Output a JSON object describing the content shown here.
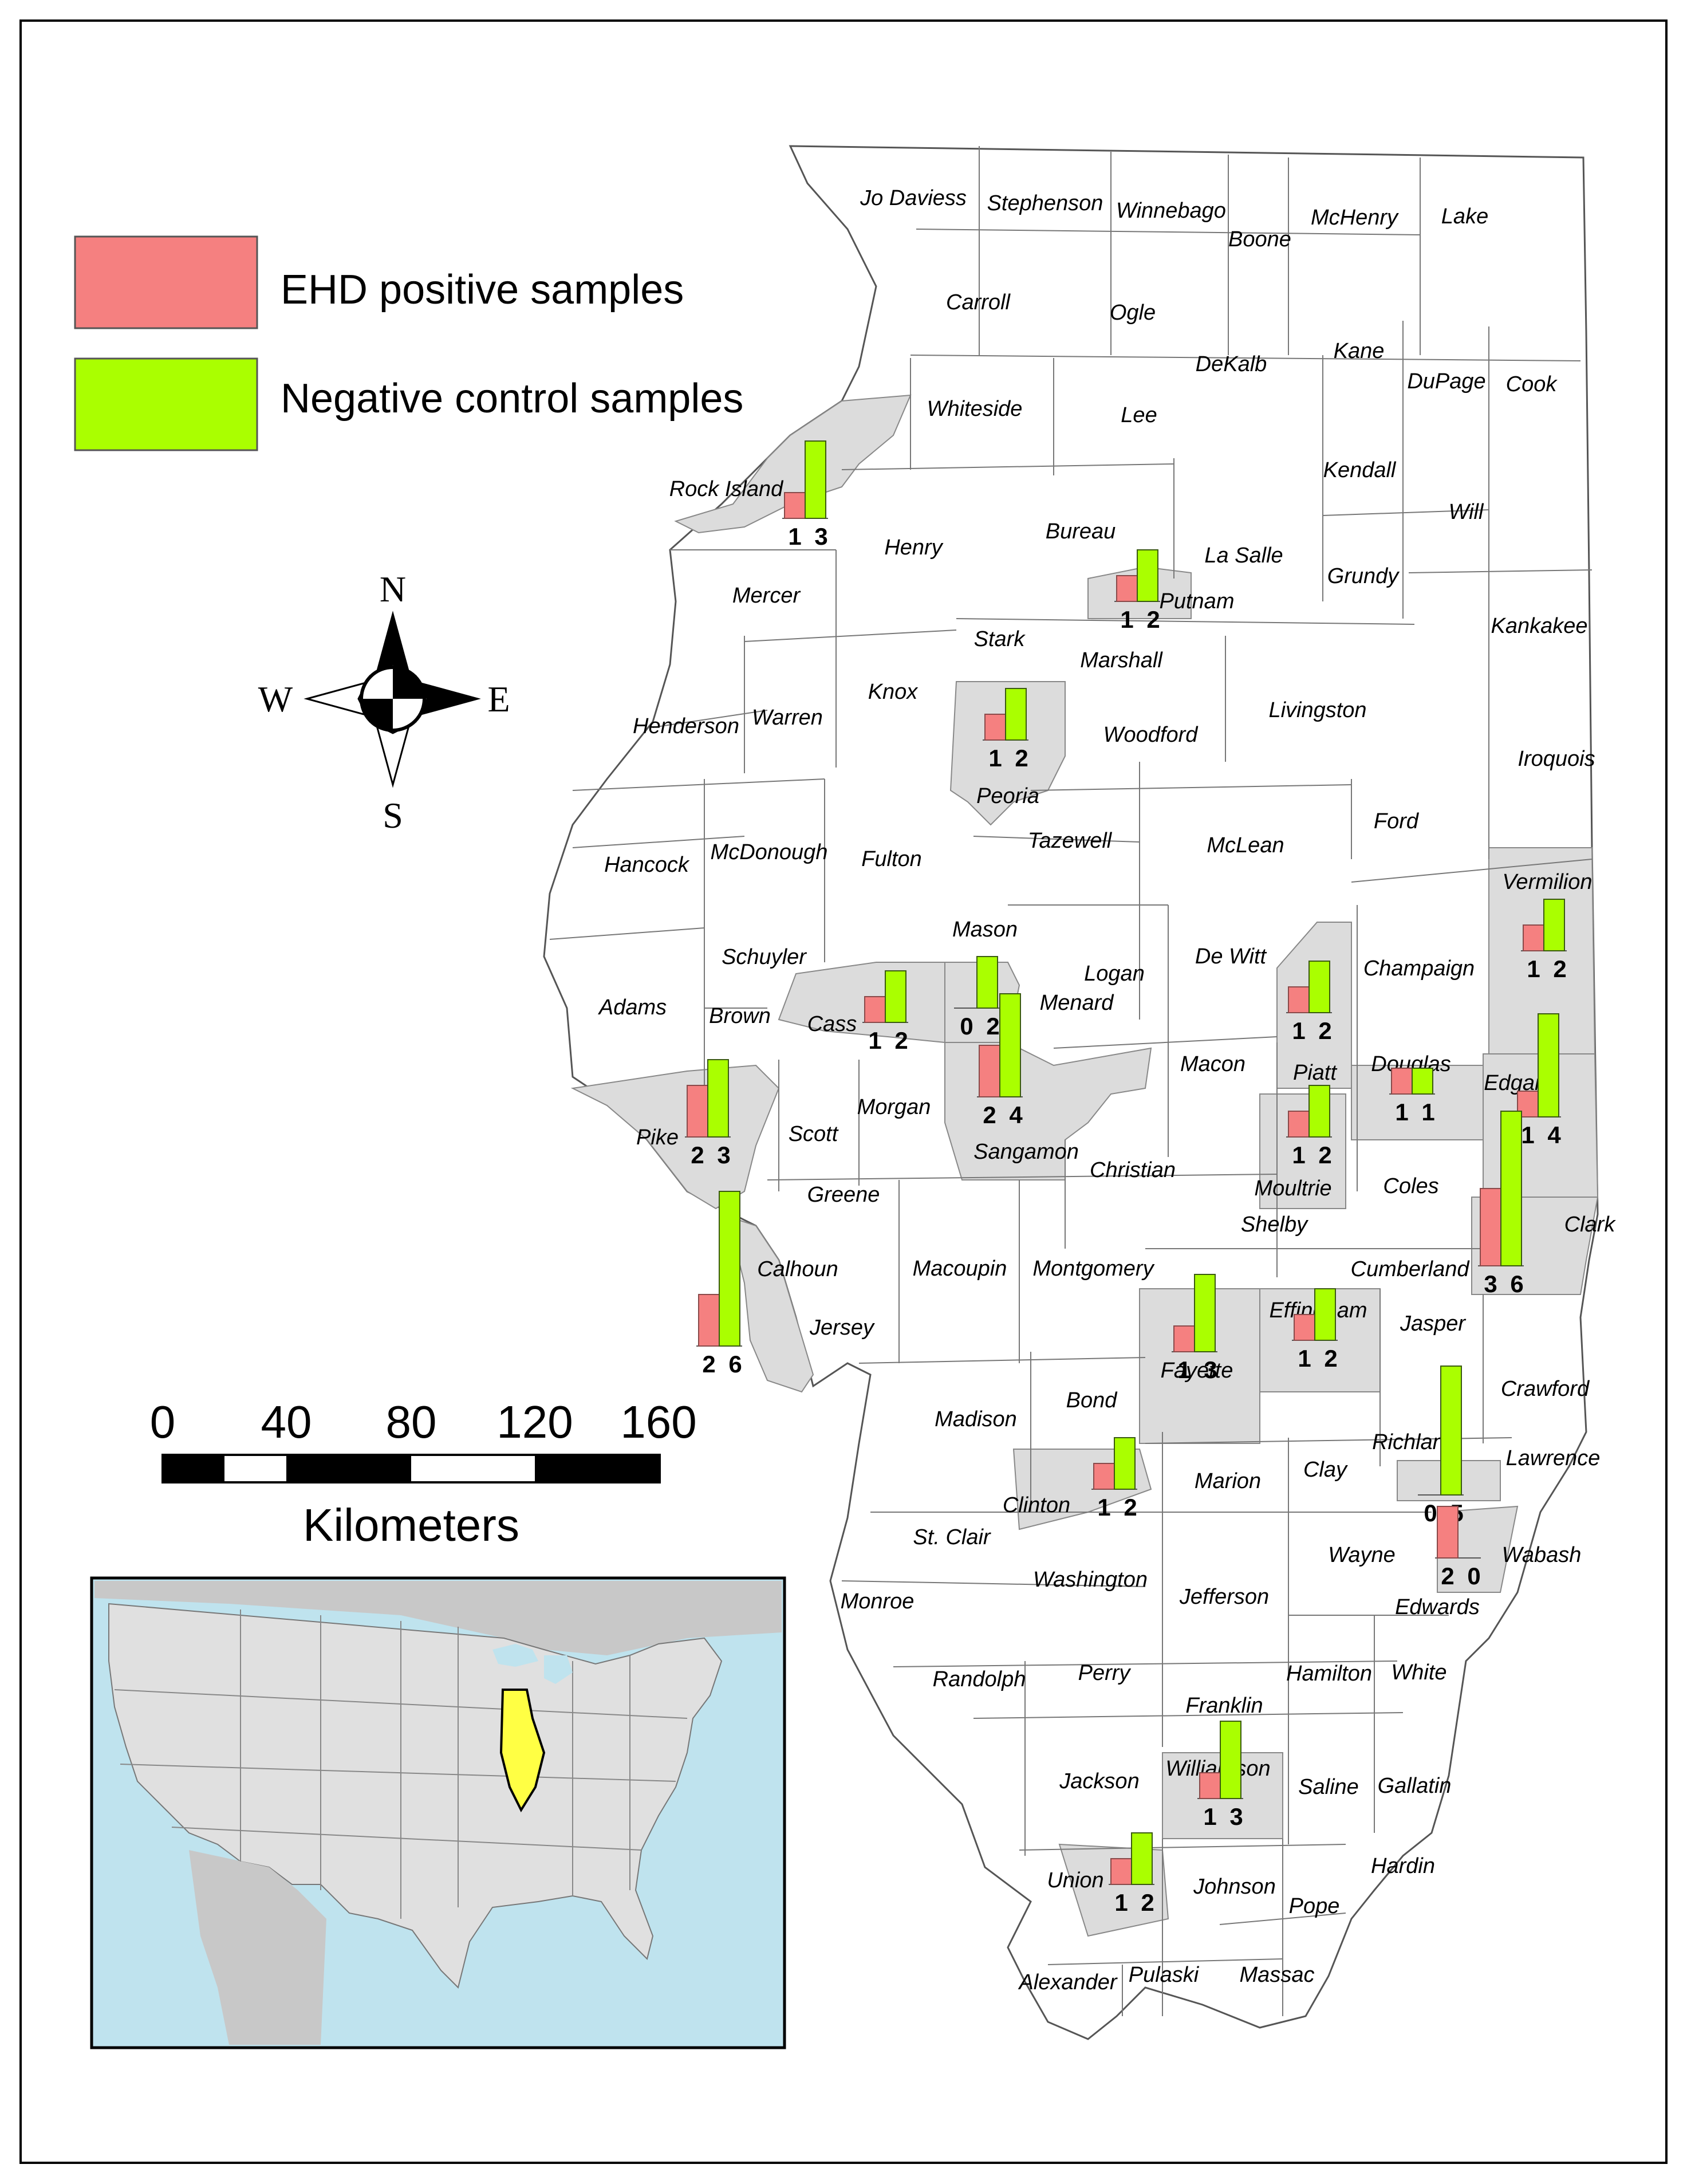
{
  "legend": {
    "positive_label": "EHD positive samples",
    "negative_label": "Negative control samples",
    "positive_color": "#f58080",
    "negative_color": "#aaff00",
    "sampled_county_fill": "#dcdcdc",
    "highlight_state_color": "#ffff44"
  },
  "compass": {
    "n": "N",
    "s": "S",
    "e": "E",
    "w": "W"
  },
  "scale": {
    "ticks": [
      "0",
      "40",
      "80",
      "120",
      "160"
    ],
    "unit": "Kilometers"
  },
  "counties": [
    "Jo Daviess",
    "Stephenson",
    "Winnebago",
    "Boone",
    "McHenry",
    "Lake",
    "Carroll",
    "Ogle",
    "DeKalb",
    "Kane",
    "DuPage",
    "Cook",
    "Whiteside",
    "Lee",
    "Kendall",
    "Will",
    "Rock Island",
    "Henry",
    "Bureau",
    "La Salle",
    "Grundy",
    "Mercer",
    "Putnam",
    "Kankakee",
    "Stark",
    "Marshall",
    "Knox",
    "Henderson",
    "Warren",
    "Woodford",
    "Livingston",
    "Iroquois",
    "Peoria",
    "Tazewell",
    "McLean",
    "Ford",
    "Hancock",
    "McDonough",
    "Fulton",
    "Vermilion",
    "Mason",
    "Schuyler",
    "De Witt",
    "Champaign",
    "Logan",
    "Menard",
    "Adams",
    "Brown",
    "Cass",
    "Macon",
    "Piatt",
    "Douglas",
    "Edgar",
    "Pike",
    "Scott",
    "Morgan",
    "Sangamon",
    "Christian",
    "Moultrie",
    "Coles",
    "Greene",
    "Shelby",
    "Clark",
    "Calhoun",
    "Macoupin",
    "Montgomery",
    "Cumberland",
    "Jersey",
    "Effingham",
    "Jasper",
    "Fayette",
    "Crawford",
    "Madison",
    "Bond",
    "Richland",
    "Lawrence",
    "Clay",
    "Marion",
    "Clinton",
    "St. Clair",
    "Wayne",
    "Wabash",
    "Washington",
    "Jefferson",
    "Monroe",
    "Edwards",
    "Randolph",
    "Perry",
    "Hamilton",
    "White",
    "Franklin",
    "Williamson",
    "Jackson",
    "Saline",
    "Gallatin",
    "Hardin",
    "Union",
    "Johnson",
    "Pope",
    "Alexander",
    "Pulaski",
    "Massac"
  ],
  "samples": [
    {
      "county": "Rock Island",
      "positive": 1,
      "negative": 3
    },
    {
      "county": "Putnam",
      "positive": 1,
      "negative": 2
    },
    {
      "county": "Peoria",
      "positive": 1,
      "negative": 2
    },
    {
      "county": "Vermilion",
      "positive": 1,
      "negative": 2
    },
    {
      "county": "Cass",
      "positive": 1,
      "negative": 2
    },
    {
      "county": "Menard",
      "positive": 0,
      "negative": 2
    },
    {
      "county": "Piatt",
      "positive": 1,
      "negative": 2
    },
    {
      "county": "Sangamon",
      "positive": 2,
      "negative": 4
    },
    {
      "county": "Douglas",
      "positive": 1,
      "negative": 1
    },
    {
      "county": "Edgar",
      "positive": 1,
      "negative": 4
    },
    {
      "county": "Pike",
      "positive": 2,
      "negative": 3
    },
    {
      "county": "Moultrie",
      "positive": 1,
      "negative": 2
    },
    {
      "county": "Clark",
      "positive": 3,
      "negative": 6
    },
    {
      "county": "Calhoun",
      "positive": 2,
      "negative": 6
    },
    {
      "county": "Fayette",
      "positive": 1,
      "negative": 3
    },
    {
      "county": "Effingham",
      "positive": 1,
      "negative": 2
    },
    {
      "county": "Richland",
      "positive": 0,
      "negative": 5
    },
    {
      "county": "Clinton",
      "positive": 1,
      "negative": 2
    },
    {
      "county": "Edwards",
      "positive": 2,
      "negative": 0
    },
    {
      "county": "Williamson",
      "positive": 1,
      "negative": 3
    },
    {
      "county": "Union",
      "positive": 1,
      "negative": 2
    }
  ]
}
